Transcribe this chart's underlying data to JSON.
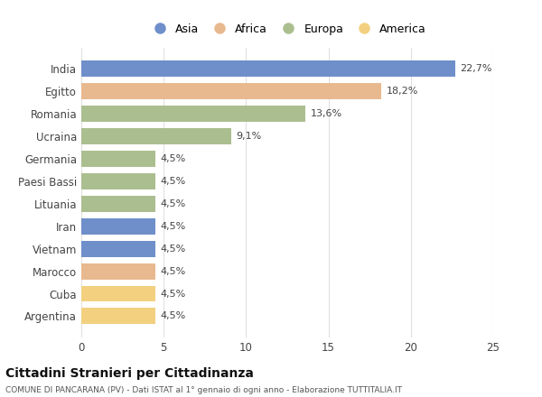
{
  "categories": [
    "India",
    "Egitto",
    "Romania",
    "Ucraina",
    "Germania",
    "Paesi Bassi",
    "Lituania",
    "Iran",
    "Vietnam",
    "Marocco",
    "Cuba",
    "Argentina"
  ],
  "values": [
    22.7,
    18.2,
    13.6,
    9.1,
    4.5,
    4.5,
    4.5,
    4.5,
    4.5,
    4.5,
    4.5,
    4.5
  ],
  "labels": [
    "22,7%",
    "18,2%",
    "13,6%",
    "9,1%",
    "4,5%",
    "4,5%",
    "4,5%",
    "4,5%",
    "4,5%",
    "4,5%",
    "4,5%",
    "4,5%"
  ],
  "colors": [
    "#6e8fc9",
    "#e8b98f",
    "#abbe8f",
    "#abbe8f",
    "#abbe8f",
    "#abbe8f",
    "#abbe8f",
    "#6e8fc9",
    "#6e8fc9",
    "#e8b98f",
    "#f2d080",
    "#f2d080"
  ],
  "legend_labels": [
    "Asia",
    "Africa",
    "Europa",
    "America"
  ],
  "legend_colors": [
    "#6e8fc9",
    "#e8b98f",
    "#abbe8f",
    "#f2d080"
  ],
  "xlim": [
    0,
    25
  ],
  "xticks": [
    0,
    5,
    10,
    15,
    20,
    25
  ],
  "title": "Cittadini Stranieri per Cittadinanza",
  "subtitle": "COMUNE DI PANCARANA (PV) - Dati ISTAT al 1° gennaio di ogni anno - Elaborazione TUTTITALIA.IT",
  "bg_color": "#ffffff",
  "grid_color": "#e0e0e0"
}
